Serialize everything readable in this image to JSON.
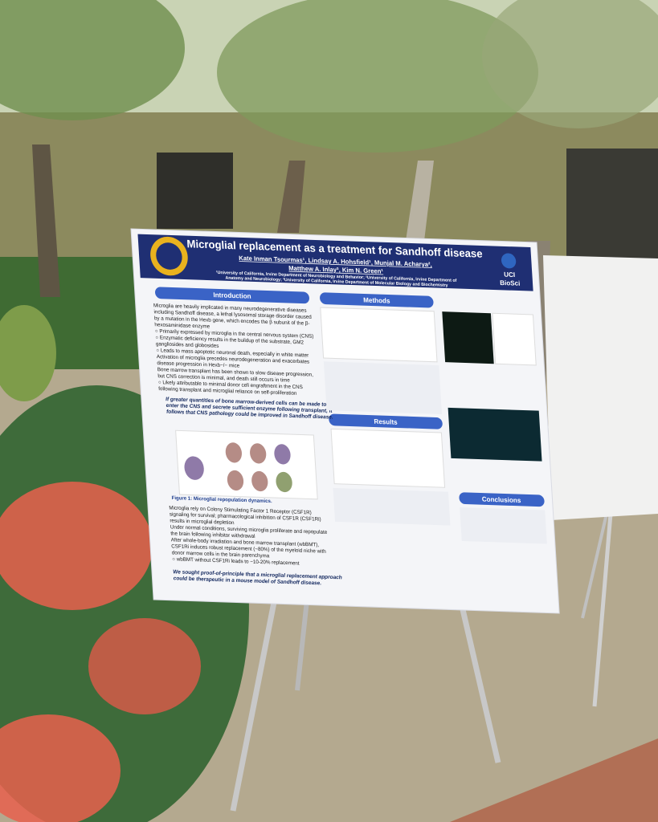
{
  "header": {
    "title": "Microglial replacement as a treatment for Sandhoff disease",
    "authors": "Kate Inman Tsourmas¹, Lindsay A. Hohsfield¹, Munjal M. Acharya²,",
    "authors_2": "Matthew A. Inlay³, Kim N. Green¹",
    "affiliations": "¹University of California, Irvine Department of Neurobiology and Behavior; ²University of California, Irvine Department of",
    "affiliations_2": "Anatomy and Neurobiology; ³University of California, Irvine Department of Molecular Biology and Biochemistry",
    "logo": "UCI",
    "logo_sub": "BioSci"
  },
  "sections": {
    "introduction": "Introduction",
    "methods": "Methods",
    "results": "Results",
    "conclusions": "Conclusions"
  },
  "introduction": [
    "Microglia are heavily implicated in many neurodegenerative diseases",
    "including Sandhoff disease, a lethal lysosomal storage disorder caused",
    "by a mutation in the Hexb gene, which encodes the β subunit of the β-",
    "hexosaminidase enzyme",
    "○ Primarily expressed by microglia in the central nervous system (CNS)",
    "○ Enzymatic deficiency results in the buildup of the substrate, GM2",
    "gangliosides and globosides",
    "○ Leads to mass apoptotic neuronal death, especially in white matter",
    "Activation of microglia precedes neurodegeneration and exacerbates",
    "disease progression in Hexb−/− mice",
    "Bone marrow transplant has been shown to slow disease progression,",
    "but CNS correction is minimal, and death still occurs in time",
    "○ Likely attributable to minimal donor cell engraftment in the CNS",
    "following transplant and microglial reliance on self-proliferation"
  ],
  "hypothesis": [
    "If greater quantities of bone marrow-derived cells can be made to",
    "enter the CNS and secrete sufficient enzyme following transplant, it",
    "follows that CNS pathology could be improved in Sandhoff disease."
  ],
  "figure_caption": "Figure 1: Microglial repopulation dynamics.",
  "repopulation": [
    "Microglia rely on Colony Stimulating Factor 1 Receptor (CSF1R)",
    "signaling for survival; pharmacological inhibition of CSF1R (CSF1Ri)",
    "results in microglial depletion",
    "Under normal conditions, surviving microglia proliferate and repopulate",
    "the brain following inhibitor withdrawal",
    "After whole-body irradiation and bone marrow transplant (wbBMT),",
    "CSF1Ri induces robust replacement (~80%) of the myeloid niche with",
    "donor marrow cells in the brain parenchyma",
    "○ wbBMT without CSF1Ri leads to ~10-20% replacement"
  ],
  "aim": [
    "We sought proof-of-principle that a microglial replacement approach",
    "could be therapeutic in a mouse model of Sandhoff disease."
  ]
}
